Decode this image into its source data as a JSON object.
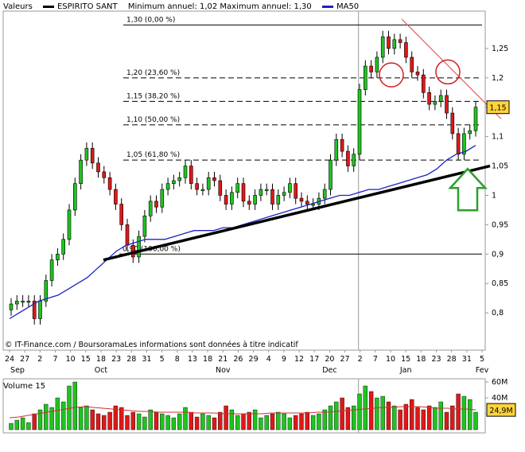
{
  "header": {
    "label": "Valeurs",
    "name": "ESPIRITO SANT",
    "stats": "Minimum annuel: 1,02 Maximum annuel: 1,30",
    "ma_label": "MA50"
  },
  "source": "© IT-Finance.com / BoursoramaLes informations sont données à titre indicatif",
  "volume_title": "Volume 15",
  "colors": {
    "up": "#1fc41f",
    "down": "#e01818",
    "ma": "#1a23c4",
    "volume_ma": "#d03030",
    "trend": "#000000",
    "resistance": "#e06060",
    "arrow": "#2aa02a",
    "price_tag": "#ffd43b"
  },
  "chart_data": [
    {
      "type": "candlestick",
      "y_ticks": [
        "1,25",
        "1,2",
        "1,15",
        "1,1",
        "1,05",
        "1",
        "0,95",
        "0,9",
        "0,85",
        "0,8"
      ],
      "ylim": [
        0.75,
        1.3
      ],
      "x_tick_labels": [
        "24",
        "27",
        "2",
        "7",
        "10",
        "15",
        "18",
        "23",
        "28",
        "31",
        "5",
        "8",
        "13",
        "18",
        "21",
        "26",
        "29",
        "4",
        "9",
        "12",
        "17",
        "20",
        "27",
        "2",
        "7",
        "10",
        "15",
        "18",
        "23",
        "28",
        "31",
        "5"
      ],
      "month_labels": [
        "Sep",
        "Oct",
        "Nov",
        "Dec",
        "Jan",
        "Fev"
      ],
      "fibonacci_levels": [
        {
          "label": "1,30 (0,00 %)",
          "value": 1.29
        },
        {
          "label": "1,20 (23,60 %)",
          "value": 1.2
        },
        {
          "label": "1,15 (38,20 %)",
          "value": 1.16
        },
        {
          "label": "1,10 (50,00 %)",
          "value": 1.12
        },
        {
          "label": "1,05 (61,80 %)",
          "value": 1.06
        },
        {
          "label": "0,90 (100,00 %)",
          "value": 0.9
        }
      ],
      "last_price": "1,15",
      "closes": [
        0.815,
        0.82,
        0.82,
        0.82,
        0.79,
        0.82,
        0.855,
        0.89,
        0.9,
        0.925,
        0.975,
        1.02,
        1.06,
        1.08,
        1.055,
        1.04,
        1.03,
        1.01,
        0.985,
        0.95,
        0.915,
        0.895,
        0.93,
        0.965,
        0.99,
        0.98,
        1.01,
        1.02,
        1.025,
        1.03,
        1.05,
        1.02,
        1.01,
        1.01,
        1.03,
        1.025,
        1.0,
        0.985,
        1.005,
        1.02,
        0.99,
        0.985,
        1.0,
        1.01,
        1.01,
        0.985,
        1.0,
        1.005,
        1.02,
        0.995,
        0.99,
        0.985,
        0.985,
        0.995,
        1.01,
        1.06,
        1.095,
        1.075,
        1.05,
        1.07,
        1.18,
        1.22,
        1.21,
        1.235,
        1.27,
        1.25,
        1.265,
        1.26,
        1.235,
        1.21,
        1.205,
        1.175,
        1.155,
        1.16,
        1.17,
        1.14,
        1.105,
        1.07,
        1.105,
        1.11,
        1.15
      ],
      "ma50": [
        0.79,
        0.8,
        0.81,
        0.82,
        0.825,
        0.83,
        0.84,
        0.85,
        0.86,
        0.875,
        0.89,
        0.905,
        0.915,
        0.92,
        0.925,
        0.925,
        0.925,
        0.93,
        0.935,
        0.94,
        0.94,
        0.94,
        0.945,
        0.945,
        0.95,
        0.955,
        0.96,
        0.965,
        0.97,
        0.975,
        0.98,
        0.985,
        0.99,
        0.995,
        1.0,
        1.0,
        1.005,
        1.01,
        1.01,
        1.015,
        1.02,
        1.025,
        1.03,
        1.035,
        1.045,
        1.06,
        1.07,
        1.075,
        1.085
      ],
      "trendline": [
        [
          0.9,
          0.89
        ],
        [
          80.0,
          1.05
        ]
      ],
      "series": [
        {
          "name": "MA50"
        }
      ]
    },
    {
      "type": "bar",
      "title": "Volume 15",
      "y_ticks": [
        "60M",
        "40M",
        "20M"
      ],
      "ylim": [
        0,
        60
      ],
      "last_value": "24,9M",
      "values": [
        8,
        12,
        15,
        9,
        20,
        25,
        32,
        28,
        40,
        35,
        55,
        60,
        28,
        30,
        25,
        20,
        18,
        22,
        30,
        28,
        18,
        22,
        20,
        16,
        25,
        22,
        20,
        18,
        15,
        20,
        28,
        22,
        16,
        20,
        18,
        15,
        22,
        30,
        25,
        18,
        20,
        22,
        25,
        15,
        18,
        20,
        22,
        20,
        15,
        18,
        20,
        22,
        18,
        20,
        25,
        30,
        35,
        40,
        28,
        30,
        45,
        55,
        48,
        40,
        42,
        35,
        30,
        25,
        32,
        38,
        28,
        25,
        30,
        28,
        35,
        22,
        30,
        45,
        42,
        38,
        22
      ],
      "ma": [
        15,
        16,
        18,
        20,
        22,
        24,
        26,
        28,
        29,
        28,
        27,
        26,
        25,
        24,
        23,
        23,
        22,
        22,
        22,
        22,
        21,
        21,
        21,
        20,
        20,
        20,
        20,
        20,
        21,
        21,
        21,
        21,
        21,
        22,
        22,
        23,
        24,
        25,
        26,
        27,
        28,
        28,
        29,
        29,
        29,
        28,
        27,
        27,
        26,
        26,
        25
      ]
    }
  ]
}
